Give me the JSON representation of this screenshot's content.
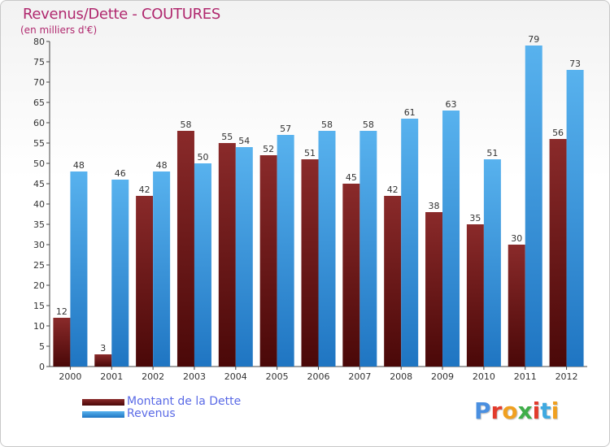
{
  "header": {
    "title": "Revenus/Dette - COUTURES",
    "subtitle": "(en milliers d'€)"
  },
  "logo": {
    "text": "Proxiti",
    "colors": [
      "#4a8fe0",
      "#e23b2c",
      "#f0a020",
      "#3fae49",
      "#e23b2c",
      "#3fa9e0",
      "#f0a020"
    ]
  },
  "legend": {
    "items": [
      {
        "label": "Montant de la Dette",
        "color": "#7a1a1a"
      },
      {
        "label": "Revenus",
        "color": "#4da6e8"
      }
    ]
  },
  "chart_data": {
    "type": "bar",
    "title": "Revenus/Dette - COUTURES",
    "subtitle": "(en milliers d'€)",
    "categories": [
      "2000",
      "2001",
      "2002",
      "2003",
      "2004",
      "2005",
      "2006",
      "2007",
      "2008",
      "2009",
      "2010",
      "2011",
      "2012"
    ],
    "series": [
      {
        "name": "Montant de la Dette",
        "color": "#7a1a1a",
        "values": [
          12,
          3,
          42,
          58,
          55,
          52,
          51,
          45,
          42,
          38,
          35,
          30,
          56
        ]
      },
      {
        "name": "Revenus",
        "color": "#4da6e8",
        "values": [
          48,
          46,
          48,
          50,
          54,
          57,
          58,
          58,
          61,
          63,
          51,
          79,
          73
        ]
      }
    ],
    "ylim": [
      0,
      80
    ],
    "yticks": [
      0,
      5,
      10,
      15,
      20,
      25,
      30,
      35,
      40,
      45,
      50,
      55,
      60,
      65,
      70,
      75,
      80
    ],
    "grid": false,
    "legend_position": "bottom-left",
    "data_labels": true
  }
}
